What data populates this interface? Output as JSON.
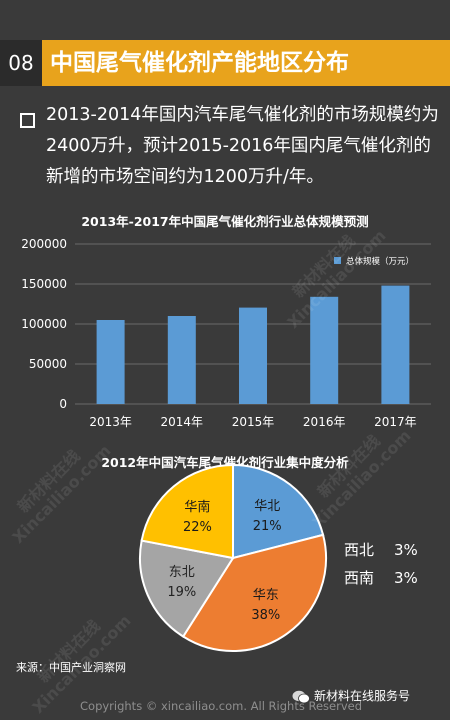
{
  "header": {
    "number": "08",
    "title": "中国尾气催化剂产能地区分布"
  },
  "bullet": {
    "text": "2013-2014年国内汽车尾气催化剂的市场规模约为2400万升，预计2015-2016年国内尾气催化剂的新增的市场空间约为1200万升/年。"
  },
  "chart_data": [
    {
      "type": "bar",
      "title": "2013年-2017年中国尾气催化剂行业总体规模预测",
      "categories": [
        "2013年",
        "2014年",
        "2015年",
        "2016年",
        "2017年"
      ],
      "series": [
        {
          "name": "总体规模（万元）",
          "values": [
            105000,
            110000,
            120500,
            134000,
            148000
          ]
        }
      ],
      "ylim": [
        0,
        200000
      ],
      "yticks": [
        "200000",
        "150000",
        "100000",
        "50000",
        "0"
      ],
      "xlabel": "",
      "ylabel": "",
      "grid": true,
      "legend": "top-right"
    },
    {
      "type": "pie",
      "title": "2012年中国汽车尾气催化剂行业集中度分析",
      "labels": [
        "华北",
        "华东",
        "东北",
        "华南",
        "西北",
        "西南"
      ],
      "values": [
        21,
        38,
        19,
        22,
        3,
        3
      ],
      "value_labels": [
        "21%",
        "38%",
        "19%",
        "22%",
        "3%",
        "3%"
      ]
    }
  ],
  "colors": {
    "header_bg": "#e8a31c",
    "bar": "#5b9bd5",
    "slice_huabei": "#5b9bd5",
    "slice_huadong": "#ed7d31",
    "slice_dongbei": "#a5a5a5",
    "slice_huanan": "#ffc000"
  },
  "source": "来源：中国产业洞察网",
  "footer": "Copyrights © xincailiao.com. All Rights Reserved",
  "wechat": {
    "label": "新材料在线服务号",
    "icon": "wechat-icon"
  },
  "watermark": {
    "text": "新材料在线",
    "url": "Xincailiao.com"
  }
}
